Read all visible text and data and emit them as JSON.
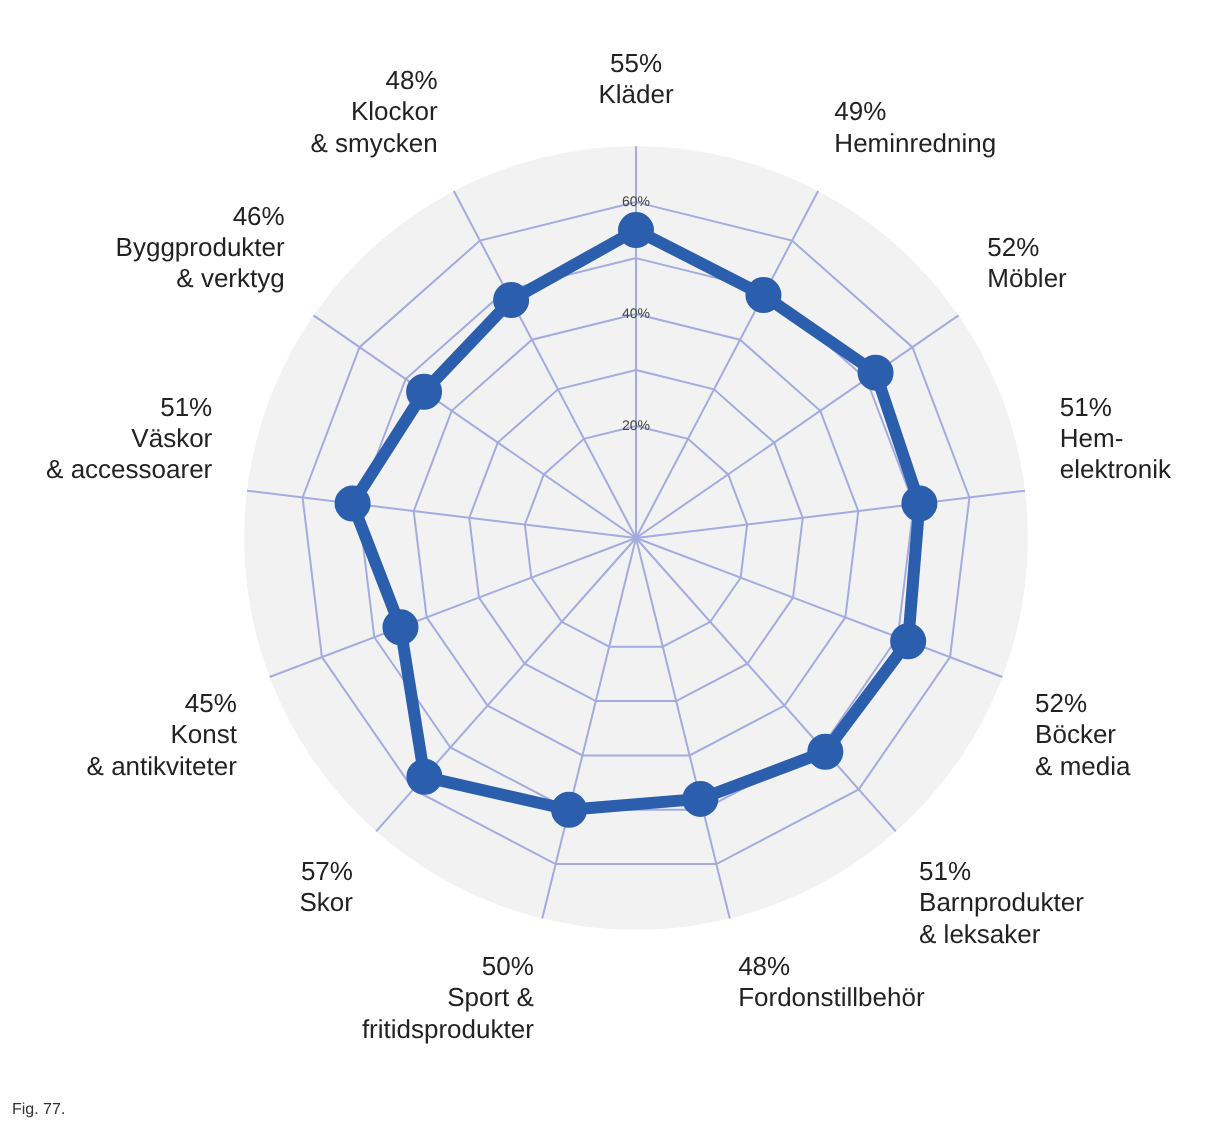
{
  "chart_data": {
    "type": "radar",
    "categories": [
      "55%\nKläder",
      "49%\nHeminredning",
      "52%\nMöbler",
      "51%\nHem-\nelektronik",
      "52%\nBöcker\n& media",
      "51%\nBarnprodukter\n& leksaker",
      "48%\nFordonstillbehör",
      "50%\nSport &\nfritidsprodukter",
      "57%\nSkor",
      "45%\nKonst\n& antikviteter",
      "51%\nVäskor\n& accessoarer",
      "46%\nByggprodukter\n& verktyg",
      "48%\nKlockor\n& smycken"
    ],
    "series": [
      {
        "color": "#2b5fae",
        "values": [
          55,
          49,
          52,
          51,
          52,
          51,
          48,
          50,
          57,
          45,
          51,
          46,
          48
        ]
      }
    ],
    "ylim": [
      0,
      70
    ],
    "yticks": [
      {
        "value": 20,
        "label": "20%"
      },
      {
        "value": 40,
        "label": "40%"
      },
      {
        "value": 60,
        "label": "60%"
      }
    ],
    "grid": true,
    "marker": "circle",
    "legend": false,
    "annotations": [
      "Fig. 77."
    ]
  }
}
